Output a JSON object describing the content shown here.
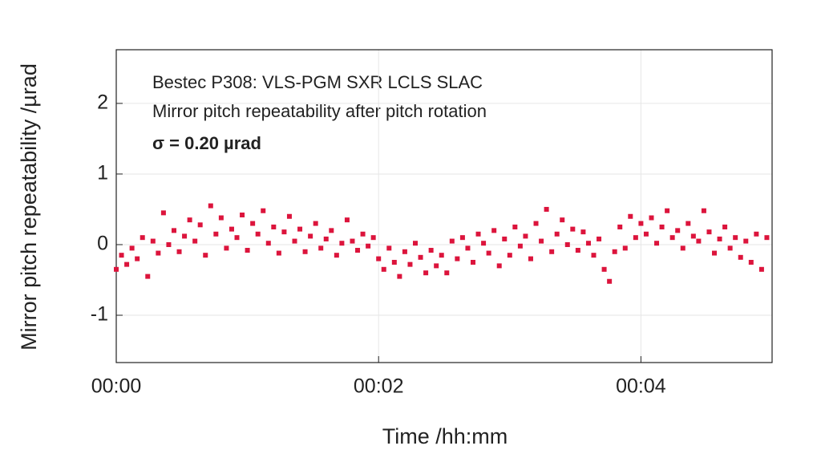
{
  "chart_data": {
    "type": "scatter",
    "annotations": [
      "Bestec P308: VLS-PGM SXR LCLS SLAC",
      "Mirror pitch repeatability after pitch rotation",
      "σ = 0.20 µrad"
    ],
    "xlabel": "Time /hh:mm",
    "ylabel": "Mirror pitch repeatability /µrad",
    "xlim": [
      0,
      5
    ],
    "xticks": [
      {
        "value": 0,
        "label": "00:00"
      },
      {
        "value": 2,
        "label": "00:02"
      },
      {
        "value": 4,
        "label": "00:04"
      }
    ],
    "ylim": [
      -1.67,
      2.76
    ],
    "yticks": [
      -1,
      0,
      1,
      2
    ],
    "grid": true,
    "color": "#dc143c",
    "x": [
      0,
      0.04,
      0.08,
      0.12,
      0.16,
      0.2,
      0.24,
      0.28,
      0.32,
      0.36,
      0.4,
      0.44,
      0.48,
      0.52,
      0.56,
      0.6,
      0.64,
      0.68,
      0.72,
      0.76,
      0.8,
      0.84,
      0.88,
      0.92,
      0.96,
      1,
      1.04,
      1.08,
      1.12,
      1.16,
      1.2,
      1.24,
      1.28,
      1.32,
      1.36,
      1.4,
      1.44,
      1.48,
      1.52,
      1.56,
      1.6,
      1.64,
      1.68,
      1.72,
      1.76,
      1.8,
      1.84,
      1.88,
      1.92,
      1.96,
      2,
      2.04,
      2.08,
      2.12,
      2.16,
      2.2,
      2.24,
      2.28,
      2.32,
      2.36,
      2.4,
      2.44,
      2.48,
      2.52,
      2.56,
      2.6,
      2.64,
      2.68,
      2.72,
      2.76,
      2.8,
      2.84,
      2.88,
      2.92,
      2.96,
      3,
      3.04,
      3.08,
      3.12,
      3.16,
      3.2,
      3.24,
      3.28,
      3.32,
      3.36,
      3.4,
      3.44,
      3.48,
      3.52,
      3.56,
      3.6,
      3.64,
      3.68,
      3.72,
      3.76,
      3.8,
      3.84,
      3.88,
      3.92,
      3.96,
      4,
      4.04,
      4.08,
      4.12,
      4.16,
      4.2,
      4.24,
      4.28,
      4.32,
      4.36,
      4.4,
      4.44,
      4.48,
      4.52,
      4.56,
      4.6,
      4.64,
      4.68,
      4.72,
      4.76,
      4.8,
      4.84,
      4.88,
      4.92,
      4.96
    ],
    "values": [
      -0.35,
      -0.15,
      -0.28,
      -0.05,
      -0.2,
      0.1,
      -0.45,
      0.05,
      -0.12,
      0.45,
      0,
      0.2,
      -0.1,
      0.12,
      0.35,
      0.05,
      0.28,
      -0.15,
      0.55,
      0.15,
      0.38,
      -0.05,
      0.22,
      0.1,
      0.42,
      -0.08,
      0.3,
      0.15,
      0.48,
      0.02,
      0.25,
      -0.12,
      0.18,
      0.4,
      0.05,
      0.22,
      -0.1,
      0.12,
      0.3,
      -0.05,
      0.08,
      0.2,
      -0.15,
      0.02,
      0.35,
      0.05,
      -0.08,
      0.15,
      -0.02,
      0.1,
      -0.2,
      -0.35,
      -0.05,
      -0.25,
      -0.45,
      -0.1,
      -0.28,
      0.02,
      -0.18,
      -0.4,
      -0.08,
      -0.3,
      -0.15,
      -0.4,
      0.05,
      -0.2,
      0.1,
      -0.05,
      -0.25,
      0.15,
      0.02,
      -0.12,
      0.2,
      -0.3,
      0.08,
      -0.15,
      0.25,
      -0.02,
      0.12,
      -0.2,
      0.3,
      0.05,
      0.5,
      -0.1,
      0.15,
      0.35,
      0,
      0.22,
      -0.08,
      0.18,
      0.02,
      -0.15,
      0.08,
      -0.35,
      -0.52,
      -0.1,
      0.25,
      -0.05,
      0.4,
      0.1,
      0.3,
      0.15,
      0.38,
      0.02,
      0.25,
      0.48,
      0.1,
      0.2,
      -0.05,
      0.3,
      0.12,
      0.05,
      0.48,
      0.18,
      -0.12,
      0.08,
      0.25,
      -0.05,
      0.1,
      -0.18,
      0.05,
      -0.25,
      0.15,
      -0.35,
      0.1
    ]
  }
}
